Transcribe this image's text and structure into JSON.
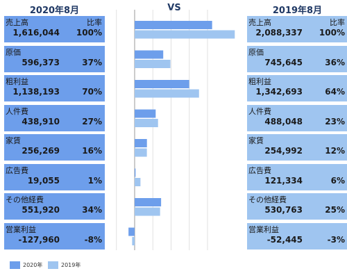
{
  "headers": {
    "left": "2020年8月",
    "vs": "VS",
    "right": "2019年8月"
  },
  "ratio_label": "比率",
  "colors": {
    "series_2020": "#6d9eeb",
    "series_2019": "#9fc5f0"
  },
  "chart_data": {
    "type": "bar",
    "orientation": "horizontal",
    "categories": [
      "売上高",
      "原価",
      "粗利益",
      "人件費",
      "家賃",
      "広告費",
      "その他経費",
      "営業利益"
    ],
    "series": [
      {
        "name": "2020年",
        "values": [
          1616044,
          596373,
          1138193,
          438910,
          256269,
          19055,
          551920,
          -127960
        ],
        "ratios": [
          "100%",
          "37%",
          "70%",
          "27%",
          "16%",
          "1%",
          "34%",
          "-8%"
        ],
        "labels": [
          "1,616,044",
          "596,373",
          "1,138,193",
          "438,910",
          "256,269",
          "19,055",
          "551,920",
          "-127,960"
        ]
      },
      {
        "name": "2019年",
        "values": [
          2088337,
          745645,
          1342693,
          488048,
          254992,
          121334,
          530763,
          -52445
        ],
        "ratios": [
          "100%",
          "36%",
          "64%",
          "23%",
          "12%",
          "6%",
          "25%",
          "-3%"
        ],
        "labels": [
          "2,088,337",
          "745,645",
          "1,342,693",
          "488,048",
          "254,992",
          "121,334",
          "530,763",
          "-52,445"
        ]
      }
    ],
    "grid": true,
    "legend": "bottom-left"
  }
}
